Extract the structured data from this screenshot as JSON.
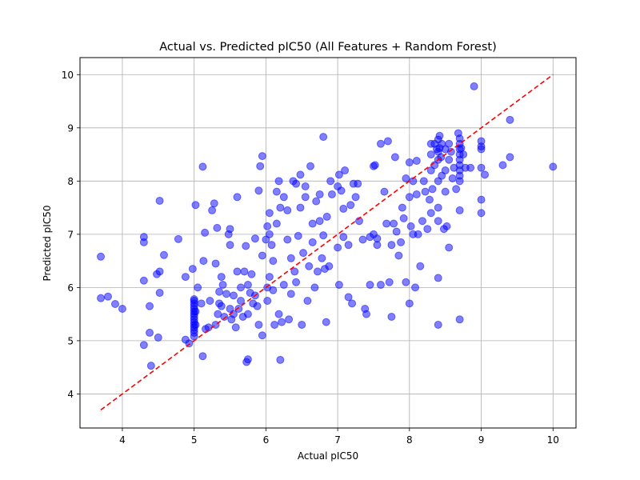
{
  "chart_data": {
    "type": "scatter",
    "title": "Actual vs. Predicted pIC50 (All Features + Random Forest)",
    "xlabel": "Actual pIC50",
    "ylabel": "Predicted pIC50",
    "xlim": [
      3.41,
      10.32
    ],
    "ylim": [
      3.36,
      10.32
    ],
    "xticks": [
      4,
      5,
      6,
      7,
      8,
      9,
      10
    ],
    "yticks": [
      4,
      5,
      6,
      7,
      8,
      9,
      10
    ],
    "grid": true,
    "marker_color": "#0000ff",
    "marker_alpha": 0.5,
    "reference_line": {
      "x": [
        3.7,
        10.0
      ],
      "y": [
        3.7,
        10.0
      ],
      "color": "#ff0000",
      "style": "dashed"
    },
    "series": [
      {
        "points": [
          [
            3.7,
            6.58
          ],
          [
            3.7,
            5.8
          ],
          [
            3.8,
            5.83
          ],
          [
            3.9,
            5.69
          ],
          [
            4.0,
            5.6
          ],
          [
            4.3,
            6.95
          ],
          [
            4.3,
            6.85
          ],
          [
            4.3,
            6.13
          ],
          [
            4.3,
            4.92
          ],
          [
            4.38,
            5.65
          ],
          [
            4.38,
            5.15
          ],
          [
            4.4,
            4.53
          ],
          [
            4.48,
            6.25
          ],
          [
            4.5,
            5.06
          ],
          [
            4.52,
            7.63
          ],
          [
            4.52,
            6.3
          ],
          [
            4.52,
            5.9
          ],
          [
            4.58,
            6.61
          ],
          [
            4.78,
            6.91
          ],
          [
            4.88,
            5.02
          ],
          [
            4.88,
            6.2
          ],
          [
            4.93,
            4.95
          ],
          [
            4.98,
            6.35
          ],
          [
            5.0,
            5.3
          ],
          [
            5.0,
            5.4
          ],
          [
            5.0,
            5.5
          ],
          [
            5.0,
            5.6
          ],
          [
            5.0,
            5.7
          ],
          [
            5.0,
            5.2
          ],
          [
            5.0,
            5.25
          ],
          [
            5.0,
            5.35
          ],
          [
            5.0,
            5.45
          ],
          [
            5.0,
            5.55
          ],
          [
            5.0,
            5.65
          ],
          [
            5.0,
            5.75
          ],
          [
            5.0,
            5.78
          ],
          [
            5.0,
            5.15
          ],
          [
            5.0,
            5.08
          ],
          [
            5.02,
            7.55
          ],
          [
            5.02,
            5.3
          ],
          [
            5.02,
            5.55
          ],
          [
            5.05,
            6.0
          ],
          [
            5.1,
            5.7
          ],
          [
            5.12,
            8.27
          ],
          [
            5.12,
            4.71
          ],
          [
            5.13,
            6.5
          ],
          [
            5.15,
            7.03
          ],
          [
            5.16,
            5.22
          ],
          [
            5.2,
            5.25
          ],
          [
            5.22,
            5.75
          ],
          [
            5.25,
            7.45
          ],
          [
            5.28,
            7.58
          ],
          [
            5.3,
            6.45
          ],
          [
            5.3,
            5.3
          ],
          [
            5.32,
            7.12
          ],
          [
            5.33,
            5.5
          ],
          [
            5.35,
            5.92
          ],
          [
            5.35,
            5.7
          ],
          [
            5.38,
            6.2
          ],
          [
            5.38,
            5.65
          ],
          [
            5.4,
            6.05
          ],
          [
            5.42,
            5.45
          ],
          [
            5.45,
            5.88
          ],
          [
            5.48,
            7.0
          ],
          [
            5.5,
            6.8
          ],
          [
            5.5,
            7.1
          ],
          [
            5.5,
            5.6
          ],
          [
            5.52,
            5.4
          ],
          [
            5.55,
            5.85
          ],
          [
            5.55,
            5.5
          ],
          [
            5.58,
            5.25
          ],
          [
            5.6,
            7.7
          ],
          [
            5.6,
            6.3
          ],
          [
            5.62,
            5.6
          ],
          [
            5.65,
            6.0
          ],
          [
            5.65,
            5.75
          ],
          [
            5.68,
            5.45
          ],
          [
            5.7,
            6.3
          ],
          [
            5.72,
            6.78
          ],
          [
            5.73,
            4.6
          ],
          [
            5.75,
            4.65
          ],
          [
            5.75,
            6.05
          ],
          [
            5.75,
            5.5
          ],
          [
            5.78,
            5.9
          ],
          [
            5.8,
            6.25
          ],
          [
            5.82,
            5.7
          ],
          [
            5.85,
            6.92
          ],
          [
            5.85,
            5.85
          ],
          [
            5.88,
            5.65
          ],
          [
            5.9,
            7.82
          ],
          [
            5.9,
            5.3
          ],
          [
            5.92,
            8.28
          ],
          [
            5.95,
            8.47
          ],
          [
            5.95,
            5.1
          ],
          [
            5.95,
            6.6
          ],
          [
            6.0,
            6.9
          ],
          [
            6.02,
            7.15
          ],
          [
            6.02,
            6.0
          ],
          [
            6.02,
            5.75
          ],
          [
            6.05,
            7.4
          ],
          [
            6.05,
            7.0
          ],
          [
            6.05,
            6.2
          ],
          [
            6.08,
            6.8
          ],
          [
            6.1,
            5.95
          ],
          [
            6.1,
            6.5
          ],
          [
            6.12,
            5.3
          ],
          [
            6.15,
            7.8
          ],
          [
            6.15,
            7.2
          ],
          [
            6.18,
            8.0
          ],
          [
            6.18,
            5.5
          ],
          [
            6.2,
            7.5
          ],
          [
            6.2,
            4.64
          ],
          [
            6.22,
            5.35
          ],
          [
            6.25,
            7.7
          ],
          [
            6.25,
            6.05
          ],
          [
            6.3,
            7.45
          ],
          [
            6.3,
            6.9
          ],
          [
            6.32,
            5.4
          ],
          [
            6.35,
            6.55
          ],
          [
            6.35,
            5.88
          ],
          [
            6.38,
            8.0
          ],
          [
            6.4,
            6.3
          ],
          [
            6.42,
            7.95
          ],
          [
            6.42,
            6.1
          ],
          [
            6.45,
            6.97
          ],
          [
            6.48,
            8.12
          ],
          [
            6.48,
            7.5
          ],
          [
            6.5,
            5.3
          ],
          [
            6.52,
            6.65
          ],
          [
            6.55,
            7.9
          ],
          [
            6.55,
            7.7
          ],
          [
            6.58,
            5.75
          ],
          [
            6.6,
            6.4
          ],
          [
            6.62,
            8.28
          ],
          [
            6.65,
            7.2
          ],
          [
            6.65,
            6.85
          ],
          [
            6.68,
            6.0
          ],
          [
            6.7,
            7.62
          ],
          [
            6.72,
            6.3
          ],
          [
            6.75,
            7.25
          ],
          [
            6.75,
            7.75
          ],
          [
            6.78,
            6.55
          ],
          [
            6.8,
            8.83
          ],
          [
            6.8,
            6.98
          ],
          [
            6.82,
            6.35
          ],
          [
            6.84,
            5.35
          ],
          [
            6.85,
            7.33
          ],
          [
            6.88,
            6.4
          ],
          [
            6.9,
            8.0
          ],
          [
            6.92,
            7.75
          ],
          [
            7.0,
            7.9
          ],
          [
            7.0,
            6.75
          ],
          [
            7.02,
            8.12
          ],
          [
            7.02,
            6.05
          ],
          [
            7.05,
            7.82
          ],
          [
            7.08,
            7.48
          ],
          [
            7.08,
            6.95
          ],
          [
            7.1,
            8.2
          ],
          [
            7.15,
            5.82
          ],
          [
            7.15,
            6.8
          ],
          [
            7.18,
            7.55
          ],
          [
            7.2,
            5.7
          ],
          [
            7.22,
            7.95
          ],
          [
            7.25,
            7.7
          ],
          [
            7.28,
            7.95
          ],
          [
            7.3,
            7.25
          ],
          [
            7.35,
            6.9
          ],
          [
            7.38,
            5.6
          ],
          [
            7.4,
            5.5
          ],
          [
            7.45,
            6.95
          ],
          [
            7.45,
            6.05
          ],
          [
            7.5,
            8.28
          ],
          [
            7.5,
            7.0
          ],
          [
            7.52,
            8.3
          ],
          [
            7.55,
            6.8
          ],
          [
            7.55,
            6.92
          ],
          [
            7.6,
            8.7
          ],
          [
            7.6,
            6.05
          ],
          [
            7.65,
            7.8
          ],
          [
            7.68,
            7.2
          ],
          [
            7.7,
            8.75
          ],
          [
            7.72,
            6.1
          ],
          [
            7.75,
            5.45
          ],
          [
            7.75,
            6.8
          ],
          [
            7.78,
            7.2
          ],
          [
            7.8,
            8.45
          ],
          [
            7.82,
            7.05
          ],
          [
            7.85,
            6.6
          ],
          [
            7.88,
            6.85
          ],
          [
            7.9,
            7.5
          ],
          [
            7.92,
            7.3
          ],
          [
            7.95,
            6.1
          ],
          [
            7.95,
            8.05
          ],
          [
            8.0,
            8.35
          ],
          [
            8.0,
            7.7
          ],
          [
            8.0,
            5.7
          ],
          [
            8.02,
            7.15
          ],
          [
            8.05,
            8.0
          ],
          [
            8.05,
            7.0
          ],
          [
            8.08,
            6.0
          ],
          [
            8.1,
            8.38
          ],
          [
            8.1,
            7.75
          ],
          [
            8.12,
            7.0
          ],
          [
            8.15,
            6.4
          ],
          [
            8.18,
            7.25
          ],
          [
            8.2,
            8.0
          ],
          [
            8.22,
            7.8
          ],
          [
            8.25,
            7.1
          ],
          [
            8.28,
            7.65
          ],
          [
            8.3,
            8.7
          ],
          [
            8.3,
            8.5
          ],
          [
            8.3,
            8.2
          ],
          [
            8.3,
            7.4
          ],
          [
            8.32,
            7.85
          ],
          [
            8.35,
            8.7
          ],
          [
            8.35,
            8.3
          ],
          [
            8.38,
            8.6
          ],
          [
            8.4,
            8.78
          ],
          [
            8.4,
            8.55
          ],
          [
            8.4,
            8.4
          ],
          [
            8.4,
            8.0
          ],
          [
            8.4,
            7.5
          ],
          [
            8.4,
            7.25
          ],
          [
            8.4,
            6.18
          ],
          [
            8.4,
            5.3
          ],
          [
            8.42,
            8.85
          ],
          [
            8.42,
            8.62
          ],
          [
            8.44,
            8.45
          ],
          [
            8.45,
            8.7
          ],
          [
            8.45,
            8.1
          ],
          [
            8.48,
            7.1
          ],
          [
            8.5,
            8.6
          ],
          [
            8.5,
            8.2
          ],
          [
            8.5,
            7.8
          ],
          [
            8.52,
            7.15
          ],
          [
            8.55,
            8.7
          ],
          [
            8.55,
            8.4
          ],
          [
            8.55,
            6.75
          ],
          [
            8.58,
            8.55
          ],
          [
            8.6,
            8.05
          ],
          [
            8.62,
            8.25
          ],
          [
            8.65,
            7.85
          ],
          [
            8.68,
            8.9
          ],
          [
            8.7,
            8.8
          ],
          [
            8.7,
            8.7
          ],
          [
            8.7,
            8.6
          ],
          [
            8.7,
            8.5
          ],
          [
            8.7,
            8.4
          ],
          [
            8.7,
            8.3
          ],
          [
            8.7,
            8.2
          ],
          [
            8.7,
            8.1
          ],
          [
            8.7,
            8.0
          ],
          [
            8.7,
            7.45
          ],
          [
            8.7,
            5.4
          ],
          [
            8.72,
            8.62
          ],
          [
            8.75,
            8.5
          ],
          [
            8.78,
            8.25
          ],
          [
            8.85,
            8.25
          ],
          [
            8.9,
            9.78
          ],
          [
            9.0,
            8.75
          ],
          [
            9.0,
            8.65
          ],
          [
            9.0,
            8.6
          ],
          [
            9.0,
            8.25
          ],
          [
            9.0,
            7.65
          ],
          [
            9.0,
            7.4
          ],
          [
            9.05,
            8.12
          ],
          [
            9.3,
            8.3
          ],
          [
            9.4,
            8.45
          ],
          [
            9.4,
            9.15
          ],
          [
            10.0,
            8.27
          ]
        ]
      }
    ]
  }
}
